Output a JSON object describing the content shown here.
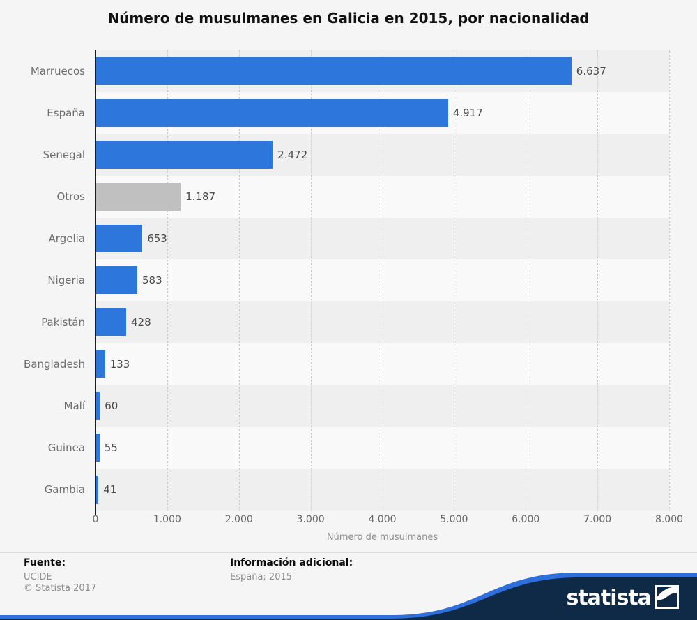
{
  "title": "Número de musulmanes en Galicia en 2015, por nacionalidad",
  "chart_data": {
    "type": "bar",
    "orientation": "horizontal",
    "title": "Número de musulmanes en Galicia en 2015, por nacionalidad",
    "categories": [
      "Marruecos",
      "España",
      "Senegal",
      "Otros",
      "Argelia",
      "Nigeria",
      "Pakistán",
      "Bangladesh",
      "Malí",
      "Guinea",
      "Gambia"
    ],
    "values": [
      6637,
      4917,
      2472,
      1187,
      653,
      583,
      428,
      133,
      60,
      55,
      41
    ],
    "value_labels": [
      "6.637",
      "4.917",
      "2.472",
      "1.187",
      "653",
      "583",
      "428",
      "133",
      "60",
      "55",
      "41"
    ],
    "xlabel": "Número de musulmanes",
    "xlim": [
      0,
      8000
    ],
    "xticks": [
      0,
      1000,
      2000,
      3000,
      4000,
      5000,
      6000,
      7000,
      8000
    ],
    "xtick_labels": [
      "0",
      "1.000",
      "2.000",
      "3.000",
      "4.000",
      "5.000",
      "6.000",
      "7.000",
      "8.000"
    ],
    "grid": "vertical-dotted",
    "legend": "none",
    "bar_color": "#2d76dc",
    "muted_bar_color": "#c0c0c0",
    "muted_categories": [
      "Otros"
    ]
  },
  "footer": {
    "source_label": "Fuente:",
    "source_value": "UCIDE",
    "copyright": "© Statista 2017",
    "info_label": "Información adicional:",
    "info_value": "España; 2015"
  },
  "branding": {
    "wordmark": "statista",
    "navy": "#0e2a47",
    "blue": "#2f6fdc"
  }
}
